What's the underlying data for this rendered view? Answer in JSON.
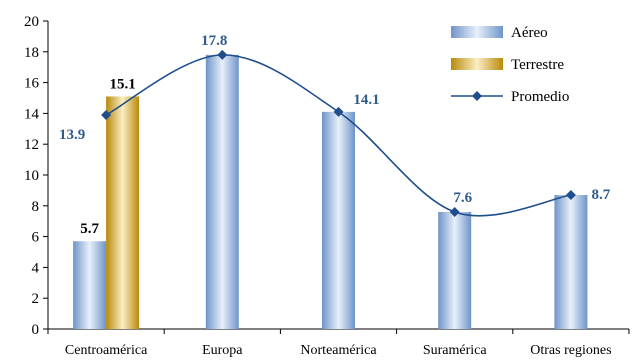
{
  "chart_data": {
    "type": "bar",
    "title": "",
    "xlabel": "",
    "ylabel": "",
    "ylim": [
      0,
      20
    ],
    "yticks": [
      0,
      2,
      4,
      6,
      8,
      10,
      12,
      14,
      16,
      18,
      20
    ],
    "grid": false,
    "legend_position": "top-right",
    "categories": [
      "Centroamérica",
      "Europa",
      "Norteamérica",
      "Suramérica",
      "Otras regiones"
    ],
    "series": [
      {
        "name": "Aéreo",
        "kind": "bar",
        "color": "#8fb0dc",
        "values": [
          5.7,
          17.8,
          14.1,
          7.6,
          8.7
        ],
        "labels": [
          "5.7",
          null,
          null,
          null,
          null
        ]
      },
      {
        "name": "Terrestre",
        "kind": "bar",
        "color": "#d4a017",
        "values": [
          15.1,
          null,
          null,
          null,
          null
        ],
        "labels": [
          "15.1",
          null,
          null,
          null,
          null
        ]
      },
      {
        "name": "Promedio",
        "kind": "line",
        "color": "#1f4e8c",
        "values": [
          13.9,
          17.8,
          14.1,
          7.6,
          8.7
        ],
        "labels": [
          "13.9",
          "17.8",
          "14.1",
          "7.6",
          "8.7"
        ]
      }
    ]
  }
}
